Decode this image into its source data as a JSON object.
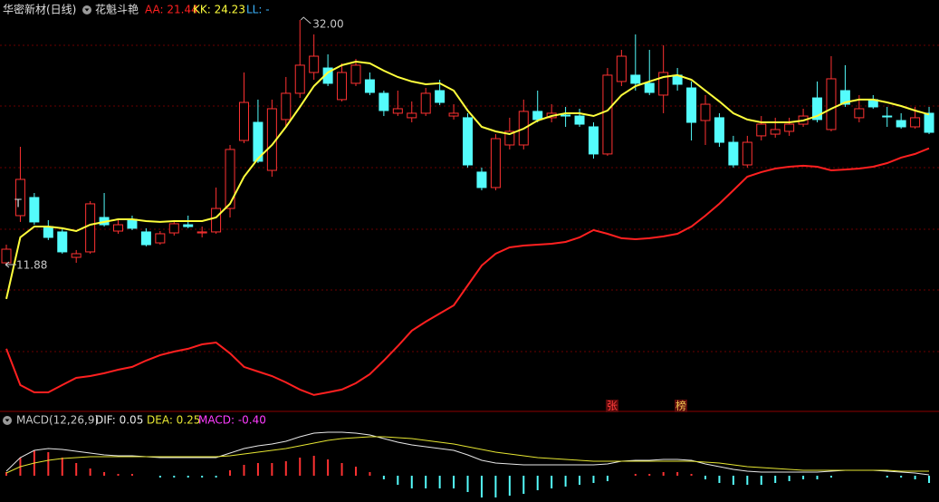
{
  "chart_data": [
    {
      "type": "candlestick",
      "title": "华密新材(日线)",
      "subtitle": "花魁斗艳",
      "ylim": [
        0,
        33.64
      ],
      "up_color": "#ff3232",
      "down_color": "#54fcfc",
      "open": [
        12.03,
        15.91,
        17.4,
        15.01,
        14.57,
        12.48,
        12.93,
        15.76,
        14.64,
        15.61,
        14.57,
        13.67,
        14.49,
        15.16,
        14.49,
        14.57,
        16.5,
        22.09,
        23.58,
        19.63,
        23.81,
        25.97,
        27.68,
        28.05,
        25.45,
        26.79,
        27.08,
        25.97,
        24.33,
        23.96,
        24.33,
        26.19,
        24.1,
        23.96,
        19.49,
        18.22,
        21.72,
        21.72,
        24.48,
        23.96,
        24.18,
        24.1,
        23.21,
        20.98,
        26.94,
        27.46,
        26.79,
        25.82,
        27.46,
        26.41,
        23.73,
        23.96,
        21.94,
        20.08,
        22.47,
        22.61,
        22.84,
        23.43,
        25.59,
        22.99,
        26.19,
        23.96,
        25.45,
        24.1,
        23.73,
        23.21,
        24.33
      ],
      "high": [
        13.52,
        21.57,
        17.77,
        15.54,
        14.87,
        13.08,
        17.1,
        17.77,
        15.54,
        15.91,
        14.87,
        14.64,
        15.54,
        15.91,
        15.01,
        18.22,
        21.72,
        27.68,
        25.45,
        25.45,
        27.31,
        32.0,
        30.81,
        29.17,
        28.43,
        28.8,
        27.68,
        26.19,
        26.19,
        25.3,
        26.41,
        27.08,
        25.07,
        24.33,
        19.86,
        22.61,
        23.96,
        25.45,
        26.19,
        25.07,
        24.85,
        24.7,
        23.58,
        28.05,
        29.54,
        30.81,
        29.54,
        29.92,
        28.05,
        26.94,
        25.82,
        24.33,
        22.47,
        22.47,
        24.1,
        23.96,
        23.96,
        24.7,
        26.94,
        29.02,
        28.28,
        25.82,
        25.82,
        24.85,
        24.33,
        24.85,
        24.85
      ],
      "low": [
        11.88,
        15.39,
        15.16,
        13.9,
        12.78,
        12.03,
        12.78,
        15.01,
        14.42,
        14.72,
        13.38,
        13.52,
        14.27,
        14.87,
        14.12,
        14.42,
        15.76,
        21.87,
        20.23,
        19.11,
        23.21,
        25.59,
        27.08,
        26.56,
        25.3,
        26.56,
        25.82,
        24.1,
        24.1,
        23.58,
        24.1,
        25.0,
        23.81,
        19.86,
        17.99,
        17.99,
        21.35,
        21.35,
        23.58,
        23.58,
        23.21,
        23.21,
        20.6,
        20.83,
        26.56,
        26.19,
        25.82,
        24.33,
        26.19,
        22.09,
        21.72,
        21.57,
        19.86,
        19.86,
        22.09,
        22.32,
        22.47,
        23.21,
        23.58,
        22.84,
        24.85,
        23.58,
        24.7,
        23.21,
        23.06,
        23.06,
        22.61
      ],
      "close": [
        13.15,
        18.89,
        15.39,
        14.12,
        12.93,
        12.78,
        16.88,
        15.16,
        15.16,
        14.87,
        13.52,
        14.42,
        15.24,
        15.01,
        14.57,
        16.5,
        21.35,
        25.22,
        20.38,
        24.7,
        25.97,
        28.28,
        29.02,
        26.79,
        27.68,
        28.28,
        26.04,
        24.55,
        24.7,
        24.33,
        25.97,
        25.22,
        24.33,
        20.08,
        18.22,
        22.24,
        22.84,
        24.48,
        23.81,
        24.33,
        24.1,
        23.43,
        20.98,
        27.46,
        29.02,
        26.79,
        26.04,
        27.68,
        26.71,
        23.58,
        25.07,
        21.94,
        20.08,
        21.94,
        23.43,
        22.99,
        23.43,
        24.1,
        23.81,
        27.16,
        25.07,
        24.7,
        24.85,
        24.03,
        23.21,
        23.96,
        22.76
      ],
      "series": [
        {
          "name": "AA: 21.44",
          "color": "#ff2020",
          "values": [
            4.96,
            1.98,
            1.38,
            1.38,
            1.98,
            2.57,
            2.72,
            2.95,
            3.24,
            3.47,
            3.99,
            4.44,
            4.73,
            4.96,
            5.33,
            5.48,
            4.59,
            3.47,
            3.09,
            2.72,
            2.2,
            1.61,
            1.16,
            1.38,
            1.61,
            2.13,
            2.87,
            3.99,
            5.18,
            6.45,
            7.19,
            7.86,
            8.53,
            10.17,
            11.81,
            12.78,
            13.3,
            13.45,
            13.52,
            13.6,
            13.75,
            14.12,
            14.72,
            14.42,
            14.05,
            13.97,
            14.05,
            14.2,
            14.42,
            15.01,
            15.91,
            16.88,
            17.99,
            19.11,
            19.49,
            19.78,
            19.93,
            20.01,
            19.93,
            19.63,
            19.7,
            19.78,
            19.93,
            20.23,
            20.68,
            20.98,
            21.44
          ]
        },
        {
          "name": "KK: 24.23",
          "color": "#ffff3c",
          "values": [
            9.06,
            14.12,
            15.01,
            15.01,
            14.87,
            14.64,
            15.16,
            15.39,
            15.61,
            15.61,
            15.46,
            15.39,
            15.46,
            15.46,
            15.46,
            15.76,
            16.88,
            19.11,
            20.6,
            21.72,
            23.21,
            24.85,
            26.56,
            27.68,
            28.28,
            28.57,
            28.43,
            27.83,
            27.31,
            26.94,
            26.71,
            26.79,
            26.19,
            24.55,
            23.21,
            22.84,
            22.61,
            23.06,
            23.73,
            24.1,
            24.33,
            24.33,
            24.1,
            24.55,
            25.82,
            26.56,
            26.94,
            27.31,
            27.46,
            27.08,
            26.19,
            25.3,
            24.33,
            23.81,
            23.58,
            23.58,
            23.58,
            23.73,
            24.1,
            24.7,
            25.22,
            25.45,
            25.45,
            25.22,
            24.92,
            24.55,
            24.23
          ]
        }
      ],
      "extra_legend": [
        {
          "name": "LL: -",
          "color": "#3cb4ff"
        }
      ],
      "annotations": [
        {
          "label": "32.00",
          "value": 32.0
        },
        {
          "label": "11.88",
          "value": 11.88
        }
      ],
      "markers": [
        "T"
      ],
      "tags": [
        "张",
        "榜"
      ]
    },
    {
      "type": "macd",
      "title": "MACD(12,26,9)",
      "ylim": [
        -1.45,
        2.75
      ],
      "up_color": "#ff3232",
      "down_color": "#54fcfc",
      "series": [
        {
          "name": "DIF: 0.05",
          "color": "#e8e8e8",
          "kind": "line",
          "values": [
            0.25,
            1.0,
            1.4,
            1.5,
            1.45,
            1.35,
            1.25,
            1.15,
            1.1,
            1.1,
            1.05,
            1.0,
            1.0,
            1.0,
            1.0,
            1.0,
            1.25,
            1.5,
            1.65,
            1.75,
            1.9,
            2.15,
            2.35,
            2.4,
            2.4,
            2.35,
            2.25,
            2.05,
            1.85,
            1.7,
            1.6,
            1.5,
            1.4,
            1.15,
            0.85,
            0.7,
            0.65,
            0.6,
            0.6,
            0.6,
            0.6,
            0.6,
            0.6,
            0.65,
            0.8,
            0.85,
            0.85,
            0.9,
            0.9,
            0.85,
            0.65,
            0.5,
            0.35,
            0.25,
            0.2,
            0.2,
            0.2,
            0.2,
            0.2,
            0.25,
            0.3,
            0.3,
            0.3,
            0.25,
            0.2,
            0.15,
            0.05
          ]
        },
        {
          "name": "DEA: 0.25",
          "color": "#e6e632",
          "kind": "line",
          "values": [
            0.15,
            0.5,
            0.7,
            0.85,
            0.95,
            1.0,
            1.05,
            1.05,
            1.05,
            1.05,
            1.05,
            1.05,
            1.05,
            1.05,
            1.05,
            1.05,
            1.1,
            1.2,
            1.3,
            1.4,
            1.5,
            1.65,
            1.8,
            1.95,
            2.05,
            2.1,
            2.15,
            2.15,
            2.1,
            2.05,
            1.95,
            1.85,
            1.75,
            1.6,
            1.45,
            1.3,
            1.2,
            1.1,
            1.0,
            0.95,
            0.9,
            0.85,
            0.8,
            0.8,
            0.8,
            0.8,
            0.8,
            0.8,
            0.8,
            0.8,
            0.75,
            0.7,
            0.6,
            0.5,
            0.45,
            0.4,
            0.35,
            0.3,
            0.3,
            0.3,
            0.3,
            0.3,
            0.3,
            0.3,
            0.25,
            0.25,
            0.25
          ]
        },
        {
          "name": "MACD: -0.40",
          "color": "#ff3cff",
          "kind": "bar",
          "values": [
            0.2,
            1.0,
            1.4,
            1.3,
            1.0,
            0.7,
            0.4,
            0.2,
            0.1,
            0.1,
            0.0,
            -0.1,
            -0.1,
            -0.1,
            -0.1,
            -0.1,
            0.3,
            0.6,
            0.7,
            0.7,
            0.8,
            1.0,
            1.1,
            0.9,
            0.7,
            0.5,
            0.2,
            -0.2,
            -0.5,
            -0.7,
            -0.7,
            -0.7,
            -0.7,
            -0.9,
            -1.2,
            -1.2,
            -1.1,
            -1.0,
            -0.8,
            -0.7,
            -0.6,
            -0.5,
            -0.4,
            -0.3,
            0.0,
            0.1,
            0.1,
            0.2,
            0.2,
            0.1,
            -0.2,
            -0.4,
            -0.5,
            -0.5,
            -0.5,
            -0.4,
            -0.3,
            -0.2,
            -0.2,
            -0.1,
            0.0,
            0.0,
            0.0,
            -0.1,
            -0.1,
            -0.2,
            -0.4
          ]
        }
      ]
    }
  ]
}
